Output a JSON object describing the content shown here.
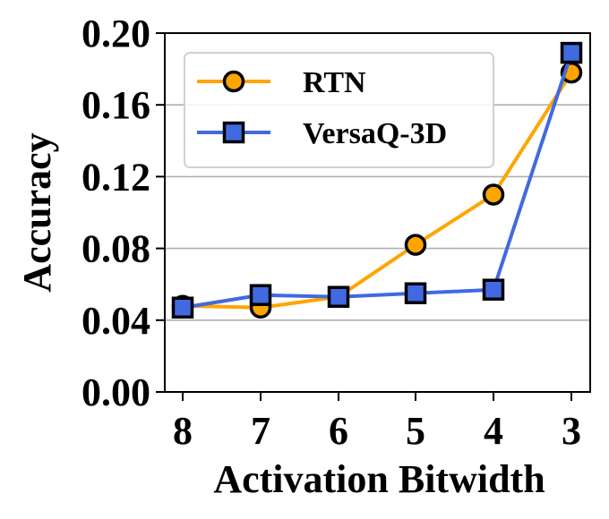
{
  "chart_data": {
    "type": "line",
    "title": "",
    "xlabel": "Activation Bitwidth",
    "ylabel": "Accuracy",
    "categories": [
      "8",
      "7",
      "6",
      "5",
      "4",
      "3"
    ],
    "ylim": [
      0.0,
      0.2
    ],
    "yticks": [
      "0.00",
      "0.04",
      "0.08",
      "0.12",
      "0.16",
      "0.20"
    ],
    "grid": "horizontal",
    "legend": "top-left",
    "series": [
      {
        "name": "RTN",
        "marker": "circle",
        "color": "#FFA500",
        "values": [
          0.048,
          0.047,
          0.053,
          0.082,
          0.11,
          0.178
        ]
      },
      {
        "name": "VersaQ-3D",
        "marker": "square",
        "color": "#4169E1",
        "values": [
          0.047,
          0.054,
          0.053,
          0.055,
          0.057,
          0.189
        ]
      }
    ]
  }
}
